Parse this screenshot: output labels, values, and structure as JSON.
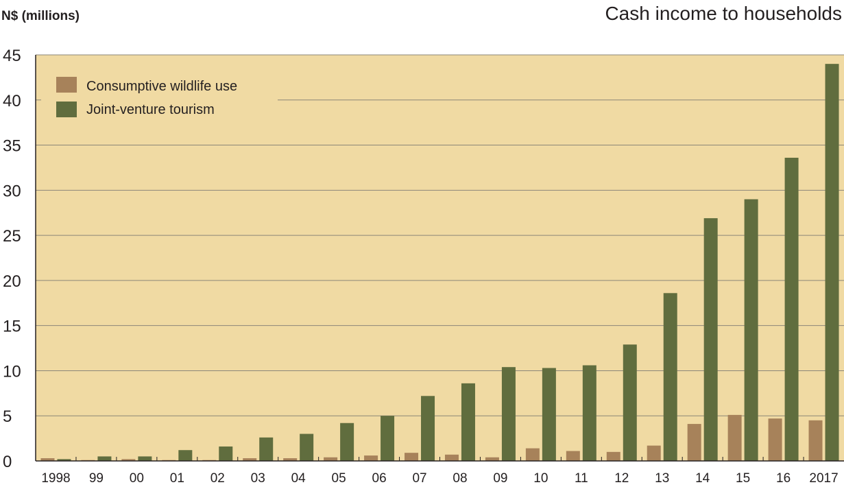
{
  "chart_data": {
    "type": "bar",
    "title": "Cash income to households",
    "ylabel": "N$ (millions)",
    "xlabel": "",
    "ylim": [
      0,
      45
    ],
    "yticks": [
      0,
      5,
      10,
      15,
      20,
      25,
      30,
      35,
      40,
      45
    ],
    "grid": "horizontal",
    "legend_position": "top-left",
    "categories": [
      "1998",
      "99",
      "00",
      "01",
      "02",
      "03",
      "04",
      "05",
      "06",
      "07",
      "08",
      "09",
      "10",
      "11",
      "12",
      "13",
      "14",
      "15",
      "16",
      "2017"
    ],
    "series": [
      {
        "name": "Consumptive wildlife use",
        "color": "#a7825a",
        "values": [
          0.3,
          0.1,
          0.2,
          0.1,
          0.1,
          0.3,
          0.3,
          0.4,
          0.6,
          0.9,
          0.7,
          0.4,
          1.4,
          1.1,
          1.0,
          1.7,
          4.1,
          5.1,
          4.7,
          4.5
        ]
      },
      {
        "name": "Joint-venture tourism",
        "color": "#606d3e",
        "values": [
          0.2,
          0.5,
          0.5,
          1.2,
          1.6,
          2.6,
          3.0,
          4.2,
          5.0,
          7.2,
          8.6,
          10.4,
          10.3,
          10.6,
          12.9,
          18.6,
          26.9,
          29.0,
          33.6,
          44.0
        ]
      }
    ]
  }
}
